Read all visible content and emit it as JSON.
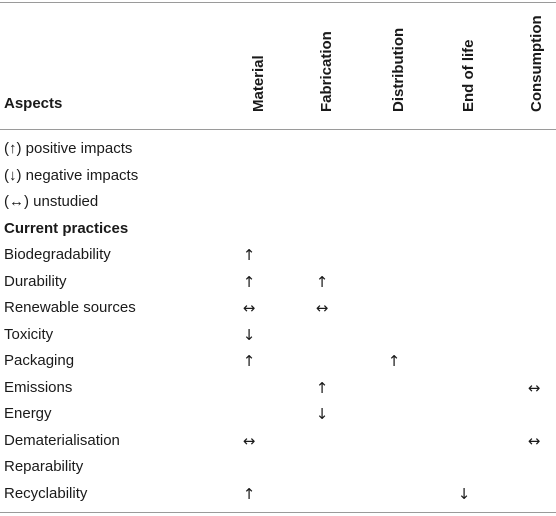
{
  "table": {
    "aspects_header": "Aspects",
    "columns": [
      "Material",
      "Fabrication",
      "Distribution",
      "End of life",
      "Consumption"
    ],
    "legend": [
      "(↑) positive impacts",
      "(↓) negative impacts",
      "(↔) unstudied"
    ],
    "section_title": "Current practices",
    "rows": [
      {
        "label": "Biodegradability",
        "cells": [
          "↑",
          "",
          "",
          "",
          ""
        ]
      },
      {
        "label": "Durability",
        "cells": [
          "↑",
          "↑",
          "",
          "",
          ""
        ]
      },
      {
        "label": "Renewable sources",
        "cells": [
          "↔",
          "↔",
          "",
          "",
          ""
        ]
      },
      {
        "label": "Toxicity",
        "cells": [
          "↓",
          "",
          "",
          "",
          ""
        ]
      },
      {
        "label": "Packaging",
        "cells": [
          "↑",
          "",
          "↑",
          "",
          ""
        ]
      },
      {
        "label": "Emissions",
        "cells": [
          "",
          "↑",
          "",
          "",
          "↔"
        ]
      },
      {
        "label": "Energy",
        "cells": [
          "",
          "↓",
          "",
          "",
          ""
        ]
      },
      {
        "label": "Dematerialisation",
        "cells": [
          "↔",
          "",
          "",
          "",
          "↔"
        ]
      },
      {
        "label": "Reparability",
        "cells": [
          "",
          "",
          "",
          "",
          ""
        ]
      },
      {
        "label": "Recyclability",
        "cells": [
          "↑",
          "",
          "",
          "↓",
          ""
        ]
      }
    ]
  }
}
